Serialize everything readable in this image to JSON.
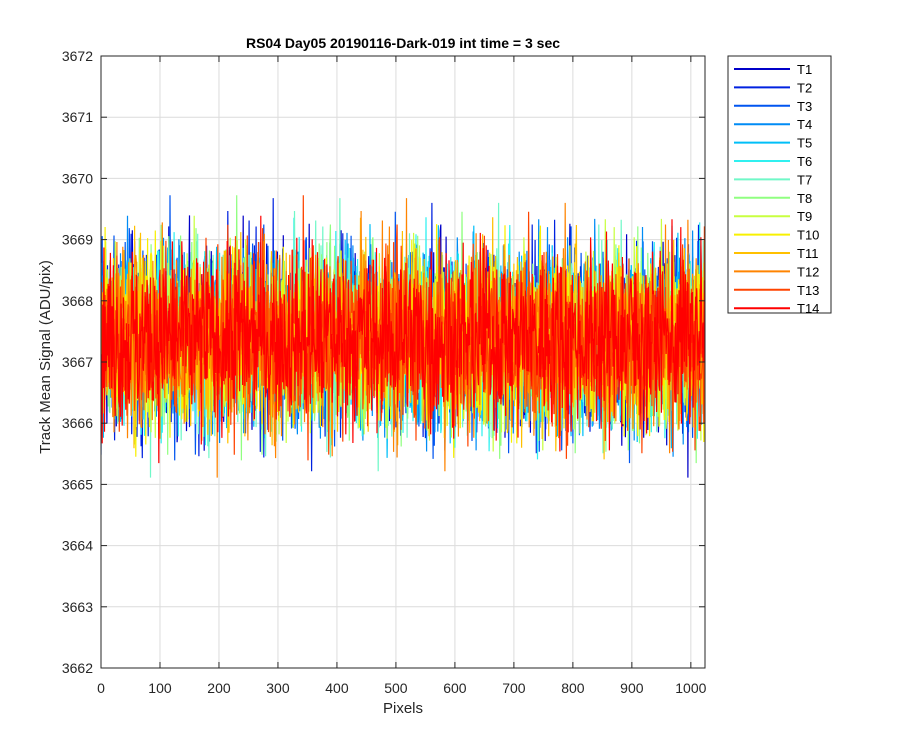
{
  "chart_data": {
    "type": "line",
    "title": "RS04 Day05 20190116-Dark-019 int time = 3 sec",
    "xlabel": "Pixels",
    "ylabel": "Track Mean Signal (ADU/pix)",
    "xlim": [
      0,
      1024
    ],
    "ylim": [
      3662,
      3672
    ],
    "xticks": [
      0,
      100,
      200,
      300,
      400,
      500,
      600,
      700,
      800,
      900,
      1000
    ],
    "yticks": [
      3662,
      3663,
      3664,
      3665,
      3666,
      3667,
      3668,
      3669,
      3670,
      3671,
      3672
    ],
    "grid": true,
    "legend_position": "outside-top-right",
    "n_points": 1024,
    "series_mean": 3667.4,
    "series_std": 0.85,
    "series": [
      {
        "name": "T1",
        "color": "#0000c8"
      },
      {
        "name": "T2",
        "color": "#0022e0"
      },
      {
        "name": "T3",
        "color": "#0055f0"
      },
      {
        "name": "T4",
        "color": "#008cf5"
      },
      {
        "name": "T5",
        "color": "#00bff8"
      },
      {
        "name": "T6",
        "color": "#30f0f0"
      },
      {
        "name": "T7",
        "color": "#70f8c8"
      },
      {
        "name": "T8",
        "color": "#90ff80"
      },
      {
        "name": "T9",
        "color": "#c8ff40"
      },
      {
        "name": "T10",
        "color": "#f8f000"
      },
      {
        "name": "T11",
        "color": "#ffc000"
      },
      {
        "name": "T12",
        "color": "#ff8400"
      },
      {
        "name": "T13",
        "color": "#ff4400"
      },
      {
        "name": "T14",
        "color": "#ff0000"
      }
    ]
  }
}
